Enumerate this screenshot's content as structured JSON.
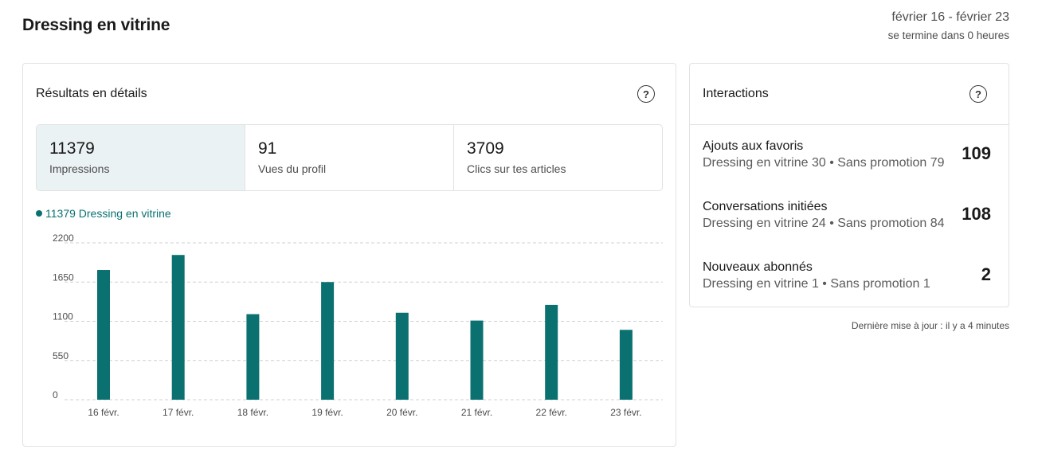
{
  "header": {
    "title": "Dressing en vitrine",
    "date_range": "février 16 - février 23",
    "ends_in": "se termine dans 0 heures"
  },
  "results": {
    "title": "Résultats en détails",
    "stats": [
      {
        "value": "11379",
        "label": "Impressions",
        "active": true
      },
      {
        "value": "91",
        "label": "Vues du profil",
        "active": false
      },
      {
        "value": "3709",
        "label": "Clics sur tes articles",
        "active": false
      }
    ],
    "legend": "11379 Dressing en vitrine"
  },
  "chart_data": {
    "type": "bar",
    "categories": [
      "16 févr.",
      "17 févr.",
      "18 févr.",
      "19 févr.",
      "20 févr.",
      "21 févr.",
      "22 févr.",
      "23 févr."
    ],
    "series": [
      {
        "name": "Dressing en vitrine",
        "values": [
          1820,
          2030,
          1200,
          1650,
          1220,
          1110,
          1330,
          980
        ]
      }
    ],
    "y_ticks": [
      0,
      550,
      1100,
      1650,
      2200
    ],
    "ylim": [
      0,
      2200
    ],
    "grid": true,
    "colors": {
      "bar": "#0a7170",
      "grid": "#d0d0d0"
    }
  },
  "interactions": {
    "title": "Interactions",
    "rows": [
      {
        "title": "Ajouts aux favoris",
        "detail": "Dressing en vitrine 30 • Sans promotion 79",
        "count": "109"
      },
      {
        "title": "Conversations initiées",
        "detail": "Dressing en vitrine 24 • Sans promotion 84",
        "count": "108"
      },
      {
        "title": "Nouveaux abonnés",
        "detail": "Dressing en vitrine 1 • Sans promotion 1",
        "count": "2"
      }
    ]
  },
  "footer": {
    "last_update": "Dernière mise à jour : il y a 4 minutes"
  },
  "icons": {
    "help": "help-circle-icon"
  }
}
